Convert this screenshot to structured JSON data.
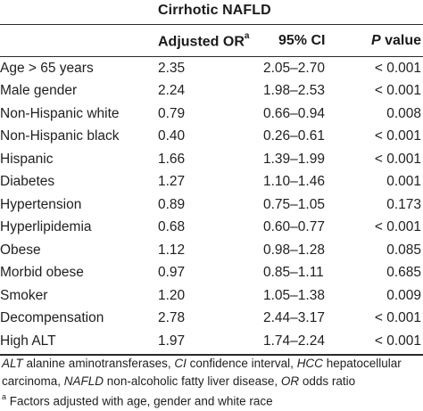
{
  "table": {
    "group_title": "Cirrhotic NAFLD",
    "headers": {
      "or_label": "Adjusted OR",
      "or_superscript": "a",
      "ci_label": "95% CI",
      "p_italic": "P",
      "p_rest": " value"
    },
    "rows": [
      {
        "factor": "Age > 65 years",
        "or": "2.35",
        "ci": "2.05–2.70",
        "p": "< 0.001"
      },
      {
        "factor": "Male gender",
        "or": "2.24",
        "ci": "1.98–2.53",
        "p": "< 0.001"
      },
      {
        "factor": "Non-Hispanic white",
        "or": "0.79",
        "ci": "0.66–0.94",
        "p": "0.008"
      },
      {
        "factor": "Non-Hispanic black",
        "or": "0.40",
        "ci": "0.26–0.61",
        "p": "< 0.001"
      },
      {
        "factor": "Hispanic",
        "or": "1.66",
        "ci": "1.39–1.99",
        "p": "< 0.001"
      },
      {
        "factor": "Diabetes",
        "or": "1.27",
        "ci": "1.10–1.46",
        "p": "0.001"
      },
      {
        "factor": "Hypertension",
        "or": "0.89",
        "ci": "0.75–1.05",
        "p": "0.173"
      },
      {
        "factor": "Hyperlipidemia",
        "or": "0.68",
        "ci": "0.60–0.77",
        "p": "< 0.001"
      },
      {
        "factor": "Obese",
        "or": "1.12",
        "ci": "0.98–1.28",
        "p": "0.085"
      },
      {
        "factor": "Morbid obese",
        "or": "0.97",
        "ci": "0.85–1.11",
        "p": "0.685"
      },
      {
        "factor": "Smoker",
        "or": "1.20",
        "ci": "1.05–1.38",
        "p": "0.009"
      },
      {
        "factor": "Decompensation",
        "or": "2.78",
        "ci": "2.44–3.17",
        "p": "< 0.001"
      },
      {
        "factor": "High ALT",
        "or": "1.97",
        "ci": "1.74–2.24",
        "p": "< 0.001"
      }
    ]
  },
  "footnotes": {
    "abbrev": [
      {
        "term": "ALT",
        "desc": " alanine aminotransferases, "
      },
      {
        "term": "CI",
        "desc": " confidence interval, "
      },
      {
        "term": "HCC",
        "desc": " hepatocellular carcinoma, "
      },
      {
        "term": "NAFLD",
        "desc": " non-alcoholic fatty liver disease, "
      },
      {
        "term": "OR",
        "desc": " odds ratio"
      }
    ],
    "adjust_marker": "a",
    "adjust_text": " Factors adjusted with age, gender and white race"
  }
}
